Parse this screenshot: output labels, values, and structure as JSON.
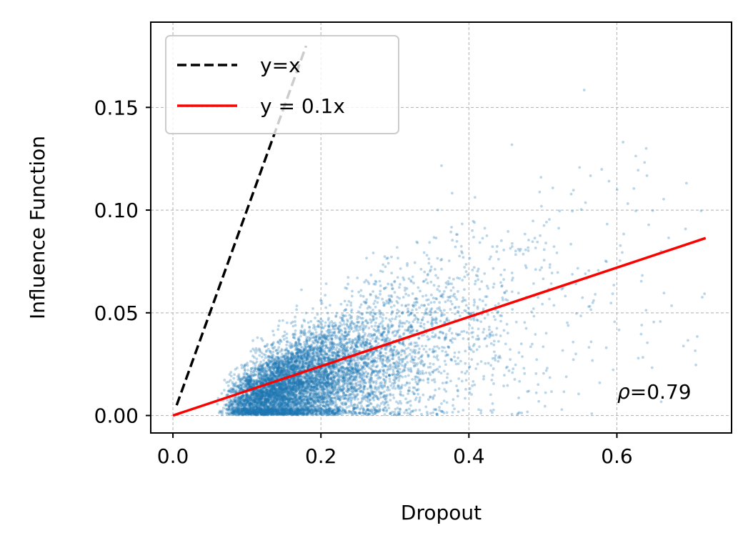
{
  "chart_data": {
    "type": "scatter",
    "title": "",
    "xlabel": "Dropout",
    "ylabel": "Influence Function",
    "xlim": [
      -0.03,
      0.755
    ],
    "ylim": [
      -0.0085,
      0.1915
    ],
    "x_ticks": [
      0.0,
      0.2,
      0.4,
      0.6
    ],
    "x_tick_labels": [
      "0.0",
      "0.2",
      "0.4",
      "0.6"
    ],
    "y_ticks": [
      0.0,
      0.05,
      0.1,
      0.15
    ],
    "y_tick_labels": [
      "0.00",
      "0.05",
      "0.10",
      "0.15"
    ],
    "grid": true,
    "legend_position": "top-left",
    "annotation": {
      "symbol": "ρ",
      "text": "=0.79"
    },
    "scatter": {
      "color": "#1f77b4",
      "approx_point_count": 8000,
      "x_range": [
        0.04,
        0.72
      ],
      "y_range": [
        0.0,
        0.175
      ],
      "trend": "y ≈ 0.1x",
      "correlation": 0.79
    },
    "lines": [
      {
        "name": "y=x",
        "style": "dashed",
        "color": "#000000",
        "slope": 1.0,
        "x": [
          0.005,
          0.18
        ]
      },
      {
        "name": "y = 0.1x",
        "style": "solid",
        "color": "#ff0000",
        "slope": 0.12,
        "x": [
          0.0,
          0.72
        ]
      }
    ]
  }
}
